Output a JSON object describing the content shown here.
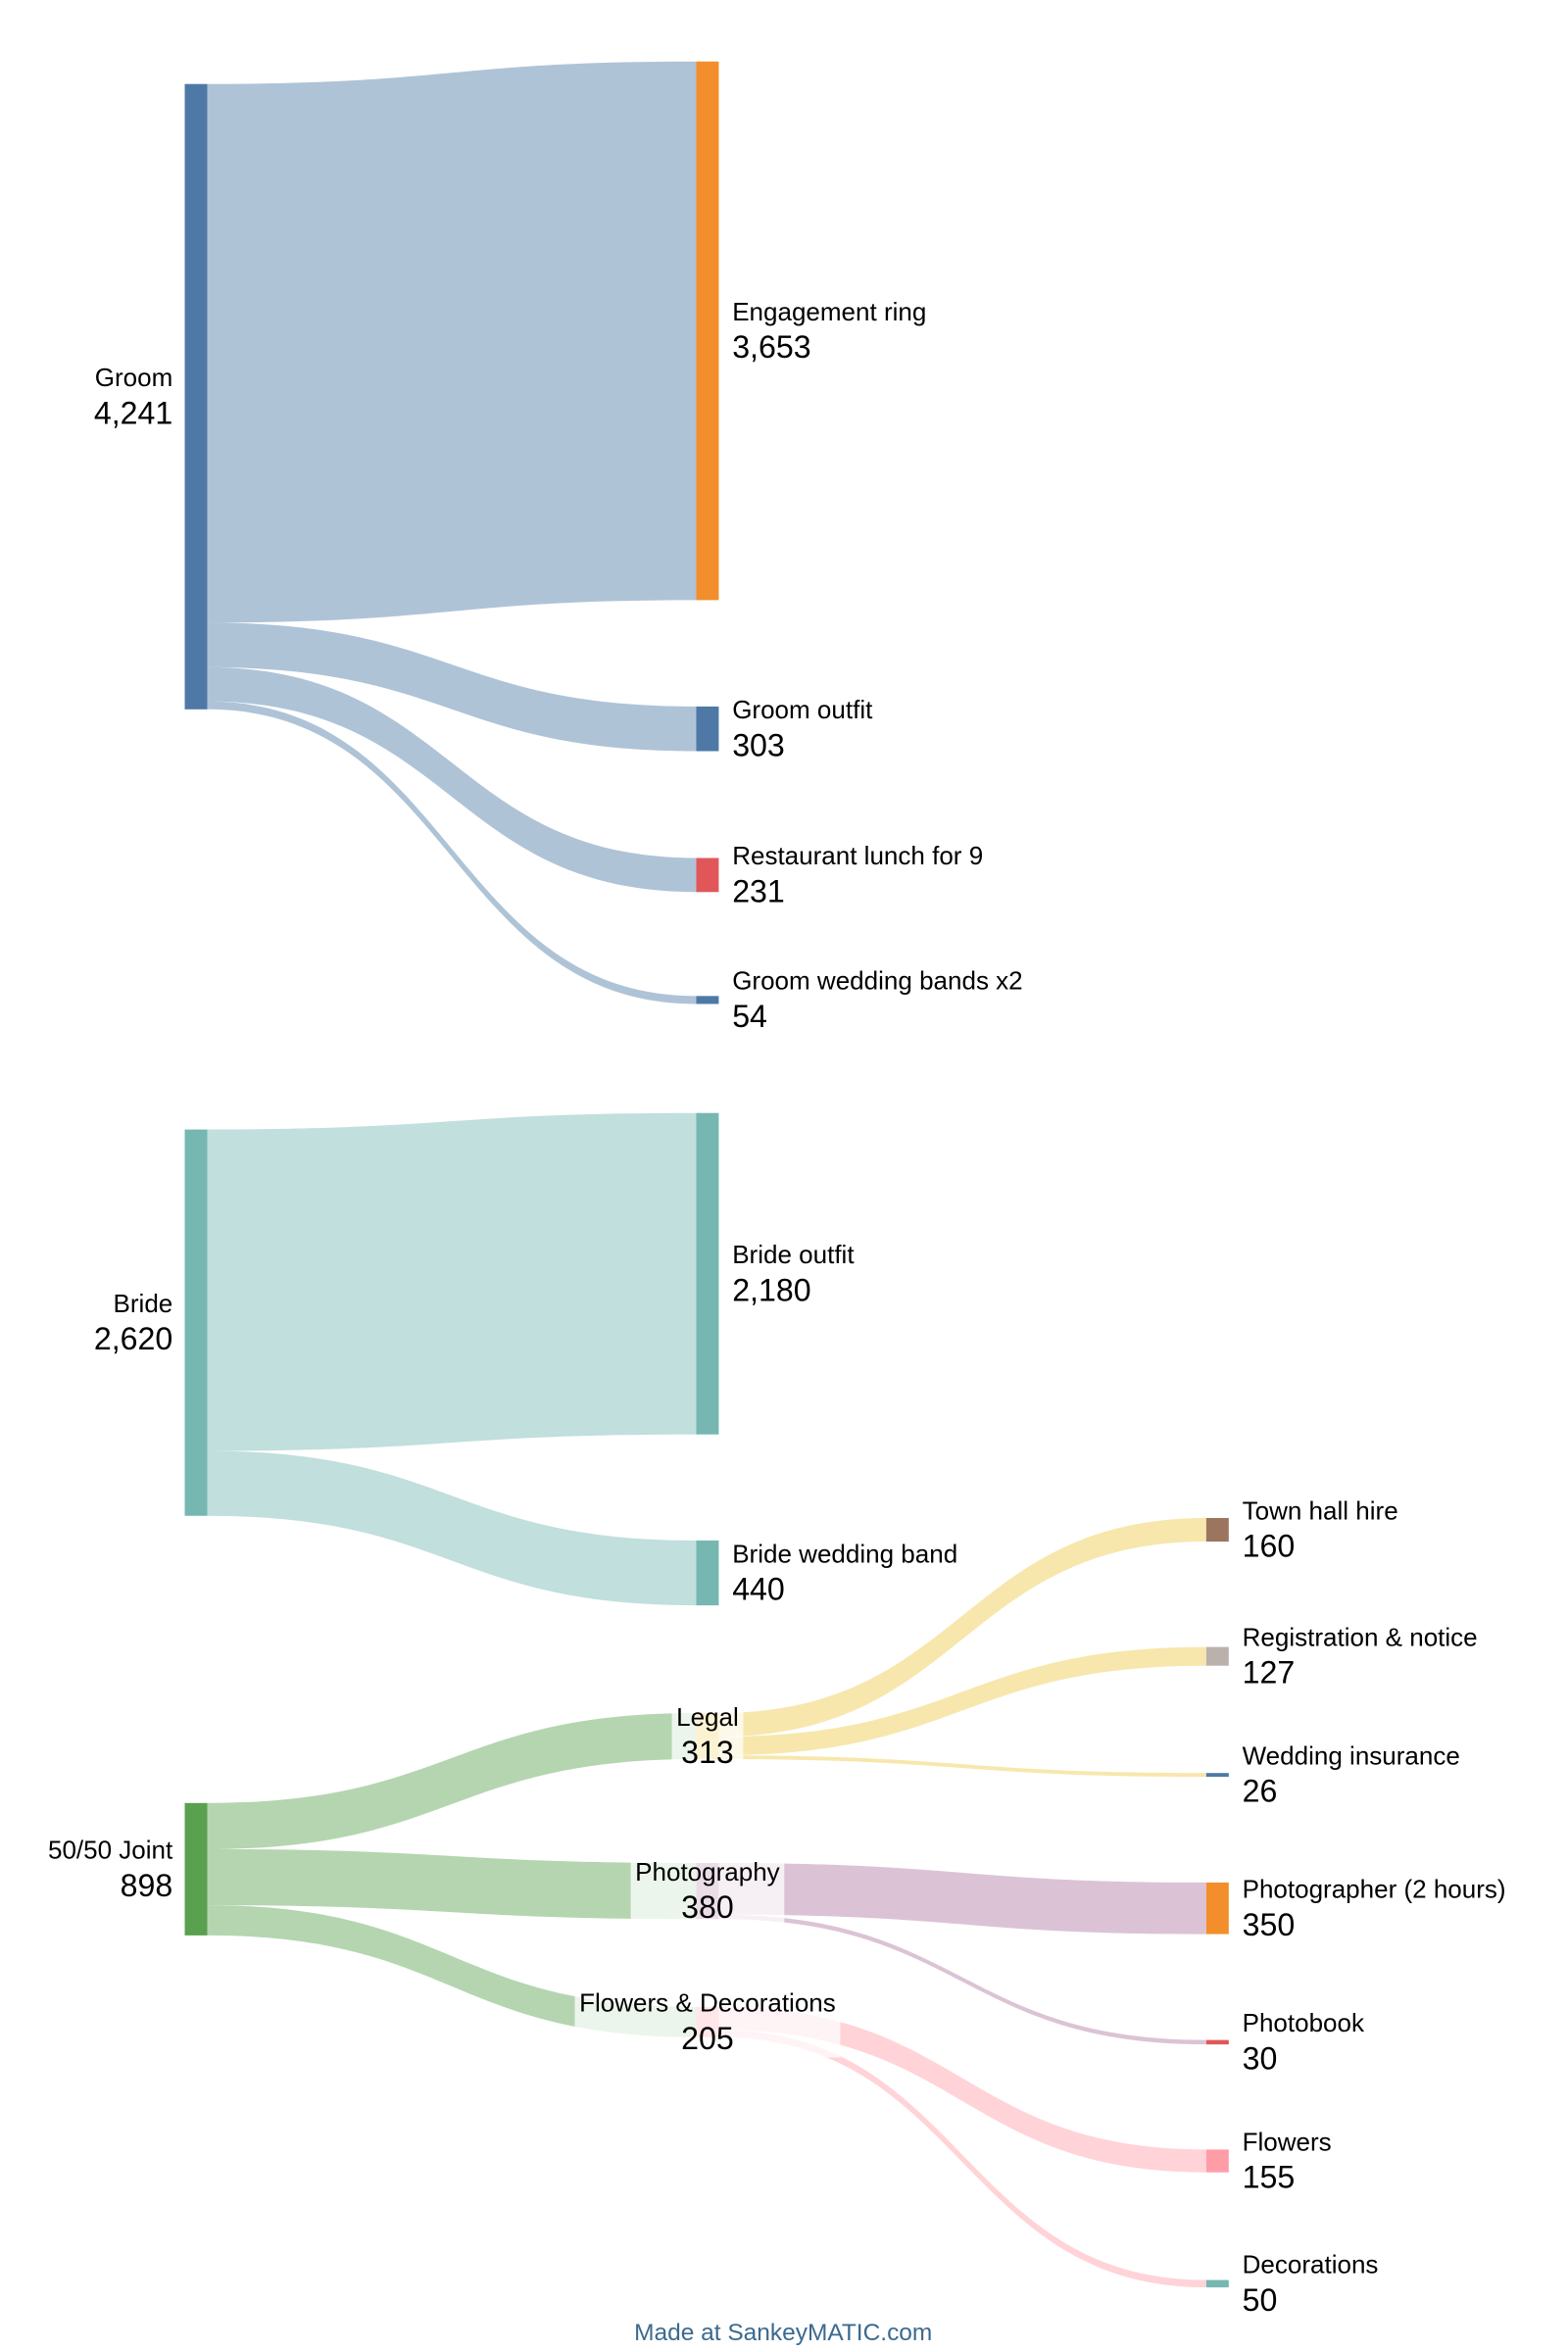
{
  "chart_data": {
    "type": "sankey",
    "title": "",
    "credit": "Made at SankeyMATIC.com",
    "nodes": [
      {
        "name": "Groom",
        "value": 4241,
        "display": "4,241",
        "color": "#4e79a7"
      },
      {
        "name": "Bride",
        "value": 2620,
        "display": "2,620",
        "color": "#76b7b2"
      },
      {
        "name": "50/50 Joint",
        "value": 898,
        "display": "898",
        "color": "#59a14f"
      },
      {
        "name": "Engagement ring",
        "value": 3653,
        "display": "3,653",
        "color": "#f28e2b"
      },
      {
        "name": "Groom outfit",
        "value": 303,
        "display": "303",
        "color": "#4e79a7"
      },
      {
        "name": "Restaurant lunch for 9",
        "value": 231,
        "display": "231",
        "color": "#e15759"
      },
      {
        "name": "Groom wedding bands x2",
        "value": 54,
        "display": "54",
        "color": "#4e79a7"
      },
      {
        "name": "Bride outfit",
        "value": 2180,
        "display": "2,180",
        "color": "#76b7b2"
      },
      {
        "name": "Bride wedding band",
        "value": 440,
        "display": "440",
        "color": "#76b7b2"
      },
      {
        "name": "Legal",
        "value": 313,
        "display": "313",
        "color": "#edc948"
      },
      {
        "name": "Photography",
        "value": 380,
        "display": "380",
        "color": "#b07aa1"
      },
      {
        "name": "Flowers & Decorations",
        "value": 205,
        "display": "205",
        "color": "#ff9da7"
      },
      {
        "name": "Town hall hire",
        "value": 160,
        "display": "160",
        "color": "#9c755f"
      },
      {
        "name": "Registration & notice",
        "value": 127,
        "display": "127",
        "color": "#bab0ac"
      },
      {
        "name": "Wedding insurance",
        "value": 26,
        "display": "26",
        "color": "#4e79a7"
      },
      {
        "name": "Photographer (2 hours)",
        "value": 350,
        "display": "350",
        "color": "#f28e2b"
      },
      {
        "name": "Photobook",
        "value": 30,
        "display": "30",
        "color": "#e15759"
      },
      {
        "name": "Flowers",
        "value": 155,
        "display": "155",
        "color": "#ff9da7"
      },
      {
        "name": "Decorations",
        "value": 50,
        "display": "50",
        "color": "#76b7b2"
      }
    ],
    "flows": [
      {
        "from": "Groom",
        "to": "Engagement ring",
        "value": 3653
      },
      {
        "from": "Groom",
        "to": "Groom outfit",
        "value": 303
      },
      {
        "from": "Groom",
        "to": "Restaurant lunch for 9",
        "value": 231
      },
      {
        "from": "Groom",
        "to": "Groom wedding bands x2",
        "value": 54
      },
      {
        "from": "Bride",
        "to": "Bride outfit",
        "value": 2180
      },
      {
        "from": "Bride",
        "to": "Bride wedding band",
        "value": 440
      },
      {
        "from": "50/50 Joint",
        "to": "Legal",
        "value": 313
      },
      {
        "from": "50/50 Joint",
        "to": "Photography",
        "value": 380
      },
      {
        "from": "50/50 Joint",
        "to": "Flowers & Decorations",
        "value": 205
      },
      {
        "from": "Legal",
        "to": "Town hall hire",
        "value": 160
      },
      {
        "from": "Legal",
        "to": "Registration & notice",
        "value": 127
      },
      {
        "from": "Legal",
        "to": "Wedding insurance",
        "value": 26
      },
      {
        "from": "Photography",
        "to": "Photographer (2 hours)",
        "value": 350
      },
      {
        "from": "Photography",
        "to": "Photobook",
        "value": 30
      },
      {
        "from": "Flowers & Decorations",
        "to": "Flowers",
        "value": 155
      },
      {
        "from": "Flowers & Decorations",
        "to": "Decorations",
        "value": 50
      }
    ]
  }
}
